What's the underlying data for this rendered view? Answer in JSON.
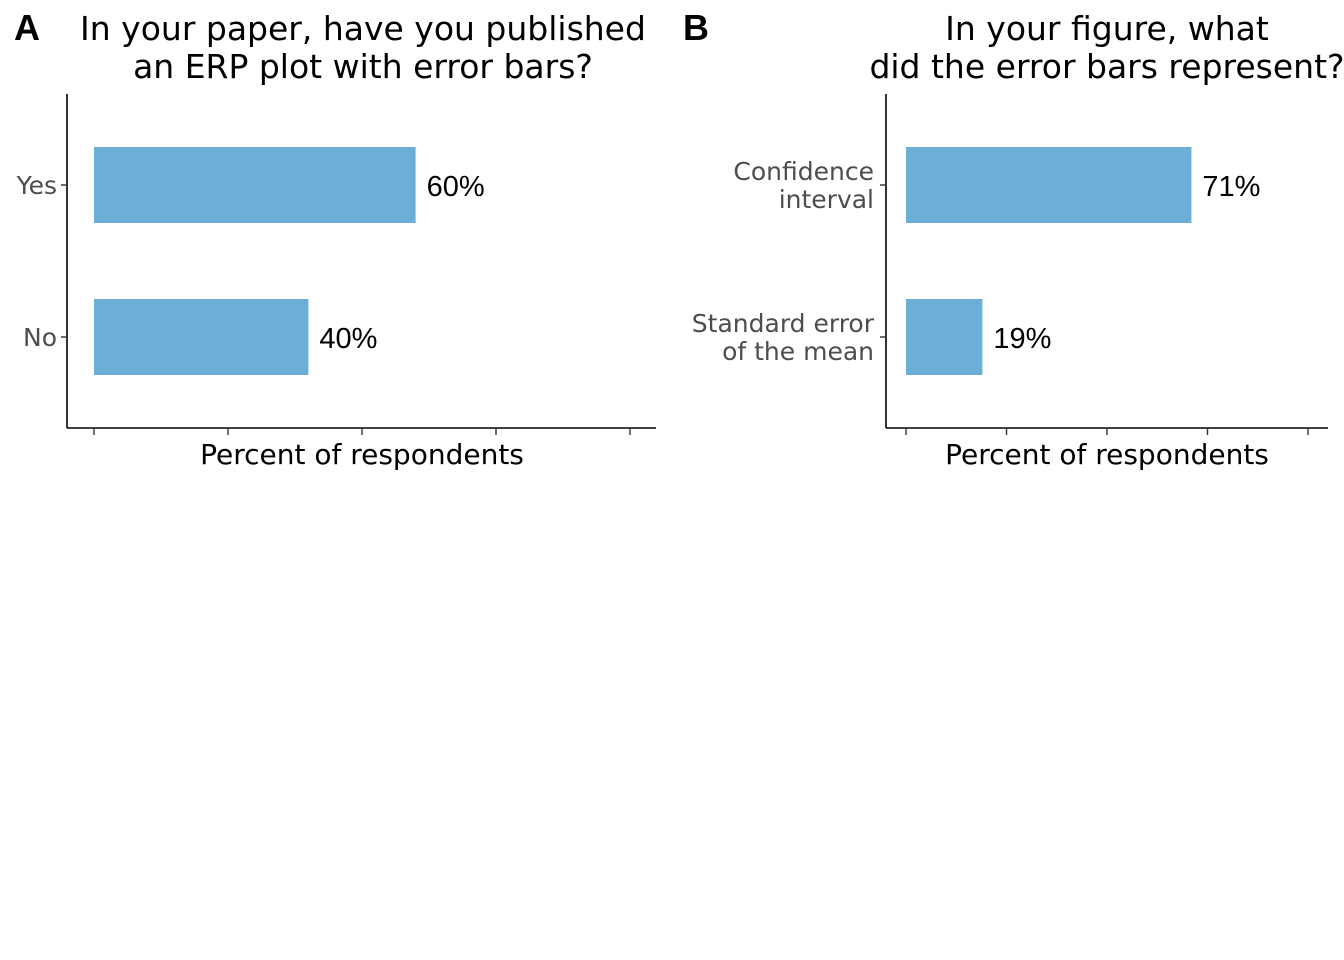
{
  "chart_data": [
    {
      "type": "bar",
      "orientation": "horizontal",
      "panel_label": "A",
      "title_lines": [
        "In your paper, have you published",
        "an ERP plot with error bars?"
      ],
      "categories": [
        "Yes",
        "No"
      ],
      "values": [
        60,
        40
      ],
      "value_labels": [
        "60%",
        "40%"
      ],
      "xlabel": "Percent of respondents",
      "xlim": [
        0,
        100
      ],
      "x_ticks": [
        0,
        25,
        50,
        75,
        100
      ],
      "x_tick_labels_shown": false,
      "bar_color": "#6baed6",
      "grid": false
    },
    {
      "type": "bar",
      "orientation": "horizontal",
      "panel_label": "B",
      "title_lines": [
        "In your figure, what",
        "did the error bars represent?"
      ],
      "categories": [
        [
          "Confidence",
          "interval"
        ],
        [
          "Standard error",
          "of the mean"
        ]
      ],
      "values": [
        71,
        19
      ],
      "value_labels": [
        "71%",
        "19%"
      ],
      "xlabel": "Percent of respondents",
      "xlim": [
        0,
        100
      ],
      "x_ticks": [
        0,
        25,
        50,
        75,
        100
      ],
      "x_tick_labels_shown": false,
      "bar_color": "#6baed6",
      "grid": false
    }
  ]
}
